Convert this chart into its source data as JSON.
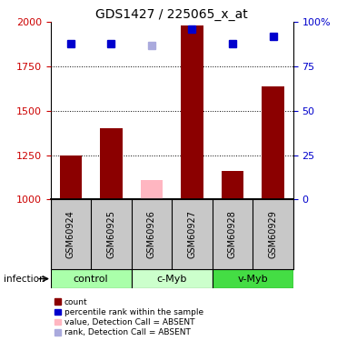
{
  "title": "GDS1427 / 225065_x_at",
  "samples": [
    "GSM60924",
    "GSM60925",
    "GSM60926",
    "GSM60927",
    "GSM60928",
    "GSM60929"
  ],
  "bar_values": [
    1250,
    1400,
    1110,
    1980,
    1160,
    1640
  ],
  "bar_colors": [
    "#8B0000",
    "#8B0000",
    "#FFB6C1",
    "#8B0000",
    "#8B0000",
    "#8B0000"
  ],
  "rank_values": [
    1880,
    1880,
    1870,
    1960,
    1880,
    1920
  ],
  "rank_colors": [
    "#0000CD",
    "#0000CD",
    "#AAAADD",
    "#0000CD",
    "#0000CD",
    "#0000CD"
  ],
  "ylim_left": [
    1000,
    2000
  ],
  "ylim_right": [
    0,
    100
  ],
  "yticks_left": [
    1000,
    1250,
    1500,
    1750,
    2000
  ],
  "yticks_right": [
    0,
    25,
    50,
    75,
    100
  ],
  "ytick_labels_right": [
    "0",
    "25",
    "50",
    "75",
    "100%"
  ],
  "group_configs": [
    {
      "label": "control",
      "cols": [
        0,
        1
      ],
      "color": "#AAFFAA"
    },
    {
      "label": "c-Myb",
      "cols": [
        2,
        3
      ],
      "color": "#CCFFCC"
    },
    {
      "label": "v-Myb",
      "cols": [
        4,
        5
      ],
      "color": "#44DD44"
    }
  ],
  "infection_label": "infection",
  "legend_items": [
    {
      "color": "#8B0000",
      "label": "count"
    },
    {
      "color": "#0000CD",
      "label": "percentile rank within the sample"
    },
    {
      "color": "#FFB6C1",
      "label": "value, Detection Call = ABSENT"
    },
    {
      "color": "#AAAADD",
      "label": "rank, Detection Call = ABSENT"
    }
  ],
  "bar_width": 0.55,
  "axis_color_left": "#CC0000",
  "axis_color_right": "#0000CC",
  "sample_bg": "#C8C8C8",
  "grid_dotted_ticks": [
    1250,
    1500,
    1750
  ]
}
